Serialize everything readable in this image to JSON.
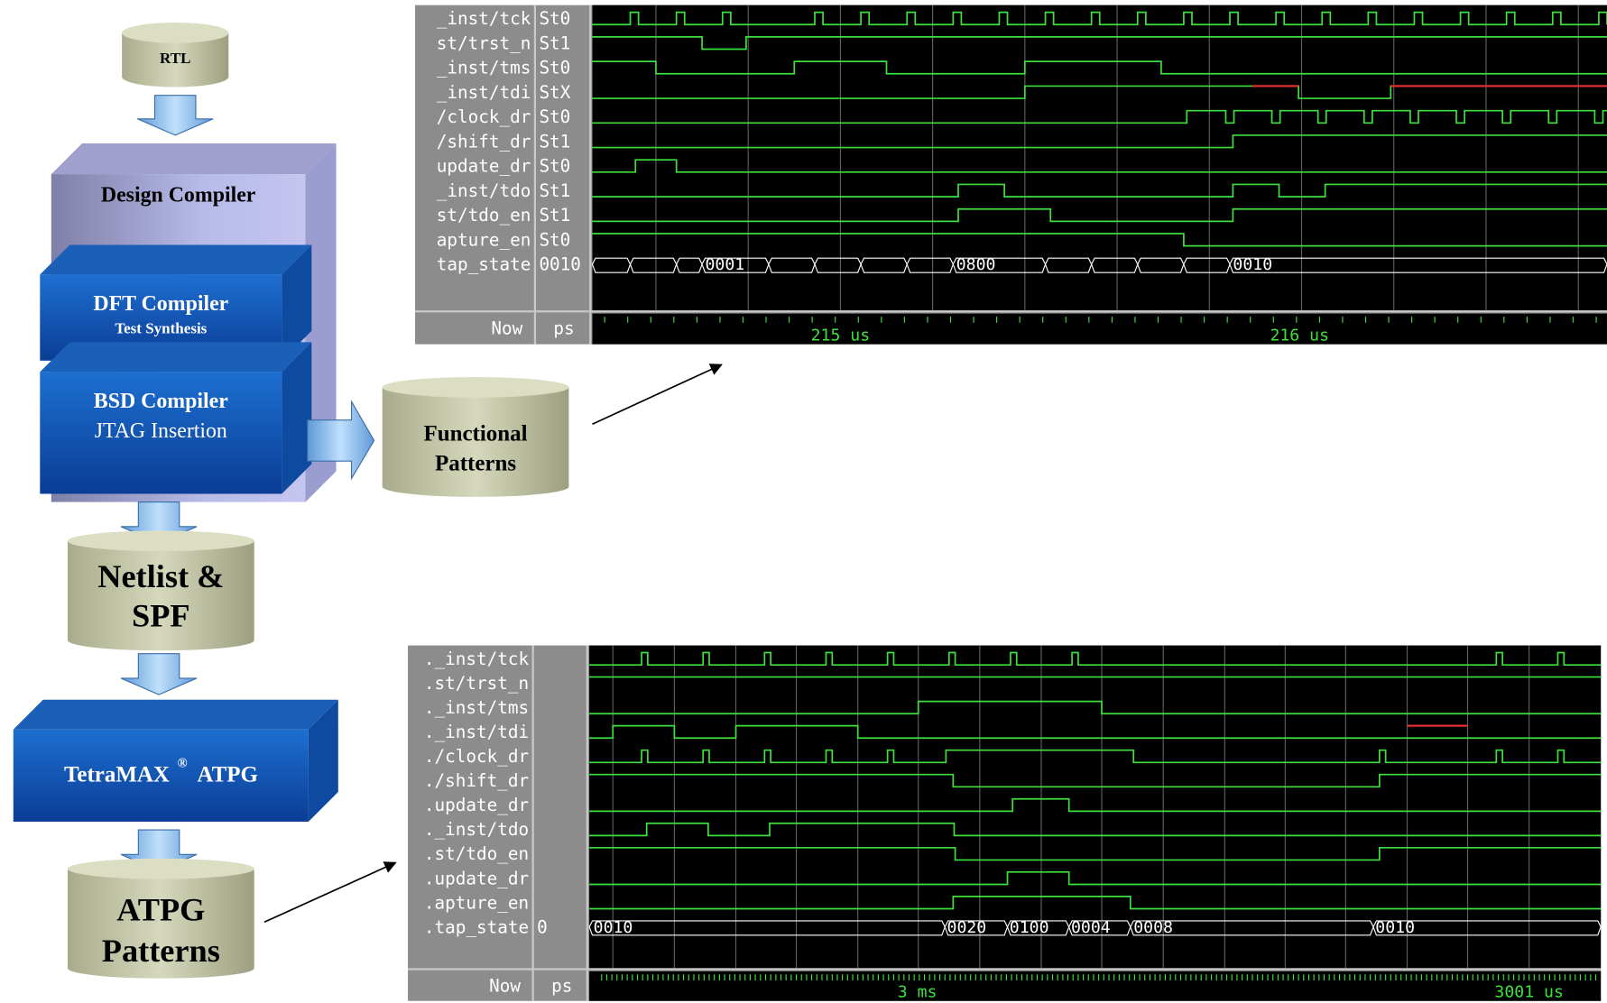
{
  "flow": {
    "rtl": "RTL",
    "design_compiler": "Design Compiler",
    "dft_compiler": {
      "title": "DFT Compiler",
      "subtitle": "Test Synthesis"
    },
    "bsd_compiler": {
      "title": "BSD Compiler",
      "subtitle": "JTAG Insertion"
    },
    "functional_patterns": [
      "Functional",
      "Patterns"
    ],
    "netlist": [
      "Netlist &",
      "SPF"
    ],
    "tetramax": {
      "name": "TetraMAX",
      "mark": "®",
      "suffix": "ATPG"
    },
    "atpg_patterns": [
      "ATPG",
      "Patterns"
    ]
  },
  "waveform_top": {
    "signals": [
      {
        "name": "_inst/tck",
        "value": "St0"
      },
      {
        "name": "st/trst_n",
        "value": "St1"
      },
      {
        "name": "_inst/tms",
        "value": "St0"
      },
      {
        "name": "_inst/tdi",
        "value": "StX"
      },
      {
        "name": "/clock_dr",
        "value": "St0"
      },
      {
        "name": "/shift_dr",
        "value": "St1"
      },
      {
        "name": "update_dr",
        "value": "St0"
      },
      {
        "name": "_inst/tdo",
        "value": "St1"
      },
      {
        "name": "st/tdo_en",
        "value": "St1"
      },
      {
        "name": "apture_en",
        "value": "St0"
      },
      {
        "name": "tap_state",
        "value": "0010"
      }
    ],
    "bus_labels": [
      "0001",
      "0800",
      "0010"
    ],
    "now": "Now",
    "unit": "ps",
    "time_labels": [
      "215 us",
      "216 us"
    ]
  },
  "waveform_bottom": {
    "signals": [
      {
        "name": "._inst/tck"
      },
      {
        "name": ".st/trst_n"
      },
      {
        "name": "._inst/tms"
      },
      {
        "name": "._inst/tdi"
      },
      {
        "name": "./clock_dr"
      },
      {
        "name": "./shift_dr"
      },
      {
        "name": ".update_dr"
      },
      {
        "name": "._inst/tdo"
      },
      {
        "name": ".st/tdo_en"
      },
      {
        "name": ".update_dr"
      },
      {
        "name": ".apture_en"
      },
      {
        "name": ".tap_state",
        "value": "0"
      }
    ],
    "bus_labels": [
      "0010",
      "0020",
      "0100",
      "0004",
      "0008",
      "0010"
    ],
    "now": "Now",
    "unit": "ps",
    "time_labels": [
      "3 ms",
      "3001 us"
    ]
  }
}
